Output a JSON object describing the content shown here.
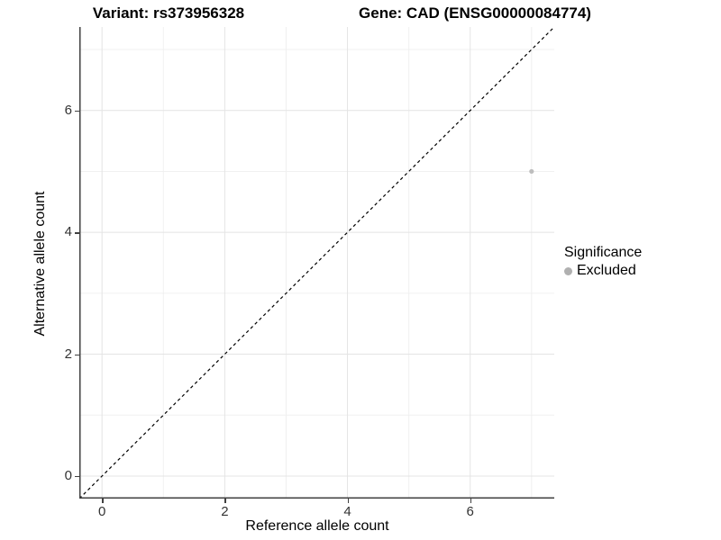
{
  "titles": {
    "variant": "Variant: rs373956328",
    "gene": "Gene: CAD (ENSG00000084774)"
  },
  "axes": {
    "x_label": "Reference allele count",
    "y_label": "Alternative allele count"
  },
  "legend": {
    "title": "Significance",
    "items": [
      {
        "label": "Excluded",
        "color": "#b0b0b0"
      }
    ]
  },
  "colors": {
    "background": "#ffffff",
    "grid_major": "#e4e4e4",
    "grid_minor": "#f0f0f0",
    "axis_line": "#404040",
    "tick_label": "#333333",
    "point": "#bdbdbd",
    "reference_line": "#000000"
  },
  "chart_data": {
    "type": "scatter",
    "title": "Variant: rs373956328 | Gene: CAD (ENSG00000084774)",
    "xlabel": "Reference allele count",
    "ylabel": "Alternative allele count",
    "xlim": [
      -0.37,
      7.37
    ],
    "ylim": [
      -0.37,
      7.37
    ],
    "x_ticks": [
      0,
      2,
      4,
      6
    ],
    "y_ticks": [
      0,
      2,
      4,
      6
    ],
    "x_minor_ticks": [
      1,
      3,
      5,
      7
    ],
    "y_minor_ticks": [
      1,
      3,
      5,
      7
    ],
    "grid": true,
    "legend_position": "right",
    "series": [
      {
        "name": "Excluded",
        "color": "#bdbdbd",
        "point_radius": 2.6,
        "points": [
          {
            "x": 7,
            "y": 5
          }
        ]
      }
    ],
    "reference_line": {
      "equation": "y = x",
      "style": "dashed",
      "color": "#000000",
      "from": [
        -0.37,
        -0.37
      ],
      "to": [
        7.37,
        7.37
      ]
    }
  }
}
